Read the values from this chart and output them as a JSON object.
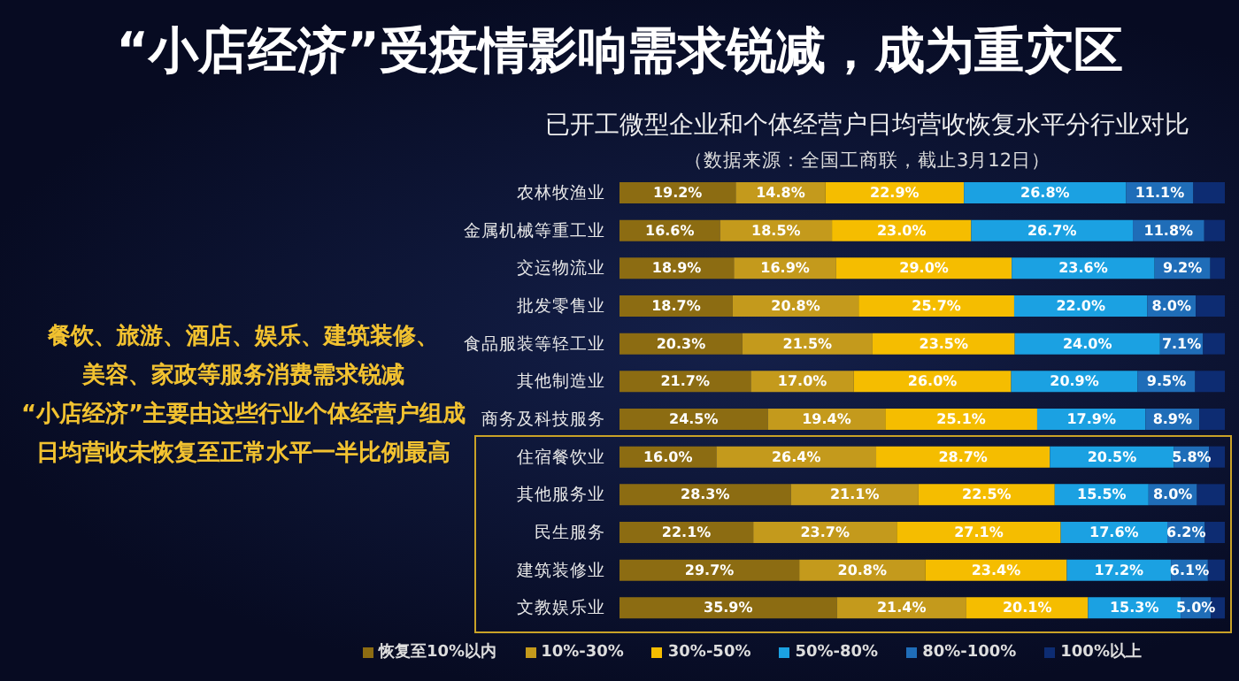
{
  "chart_data": {
    "type": "bar",
    "orientation": "horizontal",
    "stacked": true,
    "title": "“小店经济”受疫情影响需求锐减，成为重灾区",
    "subtitle": "已开工微型企业和个体经营户日均营收恢复水平分行业对比",
    "annotations": [
      "（数据来源：全国工商联，截止3月12日）",
      "餐饮、旅游、酒店、娱乐、建筑装修、",
      "美容、家政等服务消费需求锐减",
      "“小店经济”主要由这些行业个体经营户组成",
      "日均营收未恢复至正常水平一半比例最高"
    ],
    "categories": [
      "农林牧渔业",
      "金属机械等重工业",
      "交运物流业",
      "批发零售业",
      "食品服装等轻工业",
      "其他制造业",
      "商务及科技服务",
      "住宿餐饮业",
      "其他服务业",
      "民生服务",
      "建筑装修业",
      "文教娱乐业"
    ],
    "xlim": [
      0,
      100
    ],
    "tick_labels": "y",
    "legend": "bottom",
    "grid": false,
    "series": [
      {
        "name": "恢复至10%以内",
        "color": "#8c6c12",
        "values": [
          19.2,
          16.6,
          18.9,
          18.7,
          20.3,
          21.7,
          24.5,
          16.0,
          28.3,
          22.1,
          29.7,
          35.9
        ],
        "value_labels": [
          "19.2%",
          "16.6%",
          "18.9%",
          "18.7%",
          "20.3%",
          "21.7%",
          "24.5%",
          "16.0%",
          "28.3%",
          "22.1%",
          "29.7%",
          "35.9%"
        ]
      },
      {
        "name": "10%-30%",
        "color": "#c49a1c",
        "values": [
          14.8,
          18.5,
          16.9,
          20.8,
          21.5,
          17.0,
          19.4,
          26.4,
          21.1,
          23.7,
          20.8,
          21.4
        ],
        "value_labels": [
          "14.8%",
          "18.5%",
          "16.9%",
          "20.8%",
          "21.5%",
          "17.0%",
          "19.4%",
          "26.4%",
          "21.1%",
          "23.7%",
          "20.8%",
          "21.4%"
        ]
      },
      {
        "name": "30%-50%",
        "color": "#f5bd00",
        "values": [
          22.9,
          23.0,
          29.0,
          25.7,
          23.5,
          26.0,
          25.1,
          28.7,
          22.5,
          27.1,
          23.4,
          20.1
        ],
        "value_labels": [
          "22.9%",
          "23.0%",
          "29.0%",
          "25.7%",
          "23.5%",
          "26.0%",
          "25.1%",
          "28.7%",
          "22.5%",
          "27.1%",
          "23.4%",
          "20.1%"
        ]
      },
      {
        "name": "50%-80%",
        "color": "#1ba1e2",
        "values": [
          26.8,
          26.7,
          23.6,
          22.0,
          24.0,
          20.9,
          17.9,
          20.5,
          15.5,
          17.6,
          17.2,
          15.3
        ],
        "value_labels": [
          "26.8%",
          "26.7%",
          "23.6%",
          "22.0%",
          "24.0%",
          "20.9%",
          "17.9%",
          "20.5%",
          "15.5%",
          "17.6%",
          "17.2%",
          "15.3%"
        ]
      },
      {
        "name": "80%-100%",
        "color": "#1f6db8",
        "values": [
          11.1,
          11.8,
          9.2,
          8.0,
          7.1,
          9.5,
          8.9,
          5.8,
          8.0,
          6.2,
          6.1,
          5.0
        ],
        "value_labels": [
          "11.1%",
          "11.8%",
          "9.2%",
          "8.0%",
          "7.1%",
          "9.5%",
          "8.9%",
          "5.8%",
          "8.0%",
          "6.2%",
          "6.1%",
          "5.0%"
        ]
      },
      {
        "name": "100%以上",
        "color": "#0d2c72",
        "values": [
          5.2,
          3.4,
          2.4,
          4.8,
          3.6,
          4.9,
          4.2,
          2.6,
          4.6,
          3.3,
          2.8,
          2.3
        ]
      }
    ]
  }
}
